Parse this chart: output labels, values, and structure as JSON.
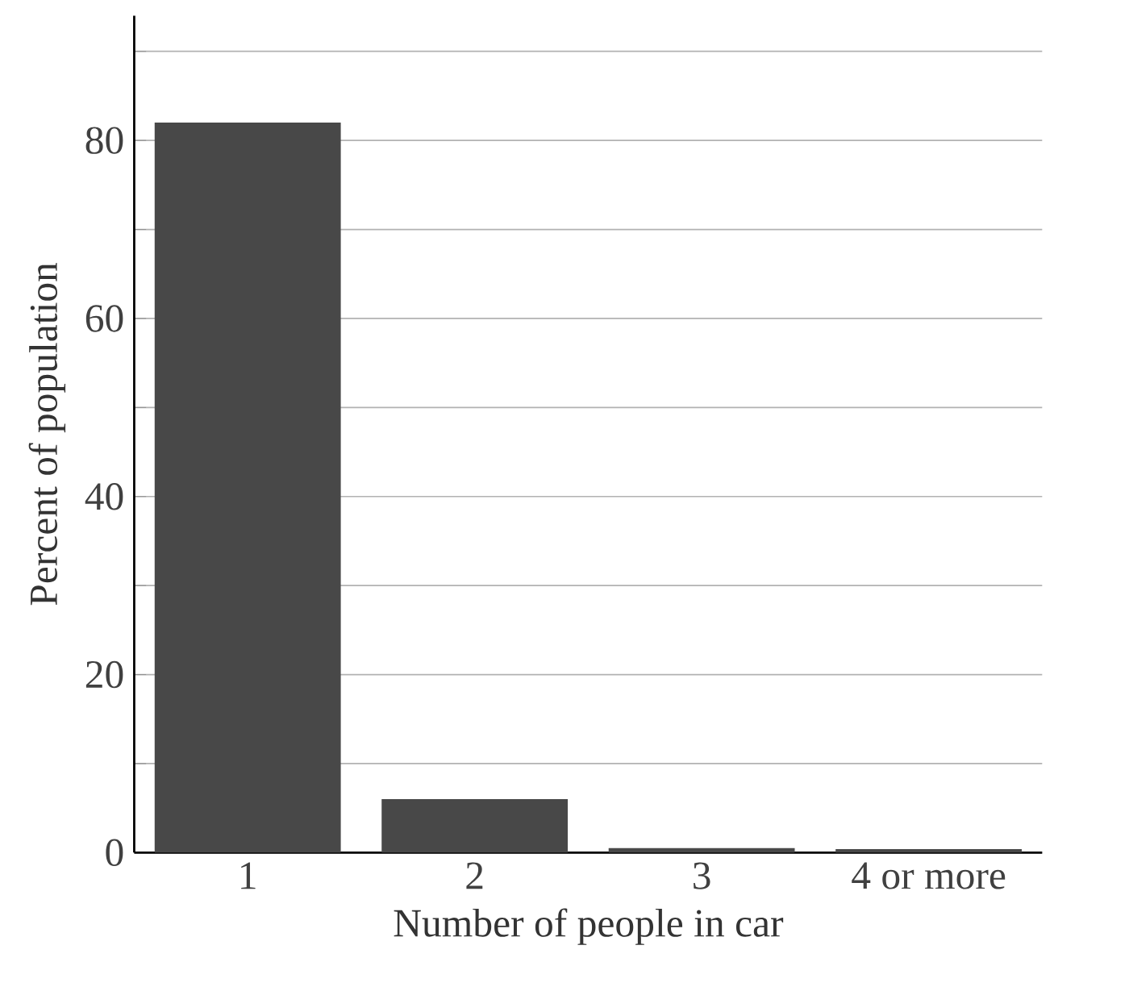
{
  "chart_data": {
    "type": "bar",
    "xlabel": "Number of people in car",
    "ylabel": "Percent of population",
    "categories": [
      "1",
      "2",
      "3",
      "4 or more"
    ],
    "values": [
      82,
      6,
      0.5,
      0.4
    ],
    "color": "#484848",
    "ylim": [
      0,
      94
    ],
    "yticks": [
      0,
      {
        "value": 10,
        "label": null
      },
      20,
      {
        "value": 30,
        "label": null
      },
      40,
      {
        "value": 50,
        "label": null
      },
      60,
      {
        "value": 70,
        "label": null
      },
      80,
      {
        "value": 90,
        "label": null
      }
    ],
    "grid": "y"
  }
}
